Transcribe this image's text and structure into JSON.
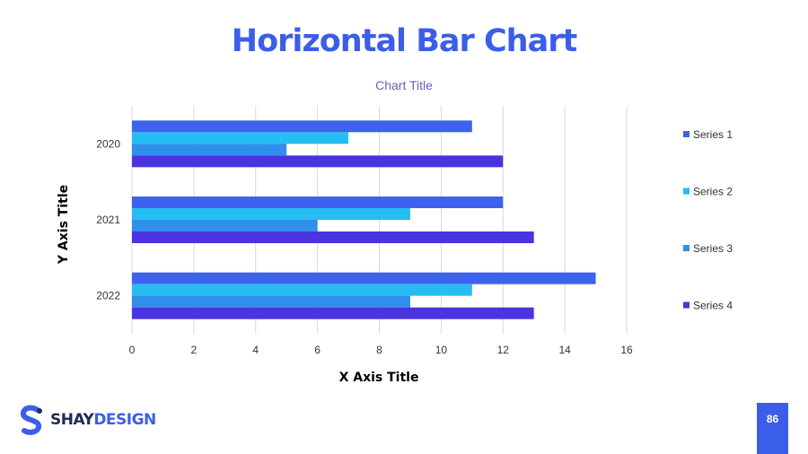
{
  "slide": {
    "title": "Horizontal Bar Chart",
    "page_number": "86"
  },
  "brand": {
    "logo_text_part1": "SHAY",
    "logo_text_part2": "DESIGN",
    "logo_icon": "s-logo-icon",
    "colors": {
      "dark": "#1f2a55",
      "accent": "#3b5ee8"
    }
  },
  "chart_data": {
    "type": "bar",
    "orientation": "horizontal",
    "title": "Chart Title",
    "xlabel": "X Axis Title",
    "ylabel": "Y Axis Title",
    "categories": [
      "2020",
      "2021",
      "2022"
    ],
    "series": [
      {
        "name": "Series 1",
        "color": "#3d63ec",
        "values": [
          11,
          12,
          15
        ]
      },
      {
        "name": "Series 2",
        "color": "#25bdf2",
        "values": [
          7,
          9,
          11
        ]
      },
      {
        "name": "Series 3",
        "color": "#2f8fea",
        "values": [
          5,
          6,
          9
        ]
      },
      {
        "name": "Series 4",
        "color": "#4a33e0",
        "values": [
          12,
          13,
          13
        ]
      }
    ],
    "xlim": [
      0,
      16
    ],
    "xticks": [
      "0",
      "2",
      "4",
      "6",
      "8",
      "10",
      "12",
      "14",
      "16"
    ],
    "grid": "vertical",
    "legend_position": "right"
  }
}
